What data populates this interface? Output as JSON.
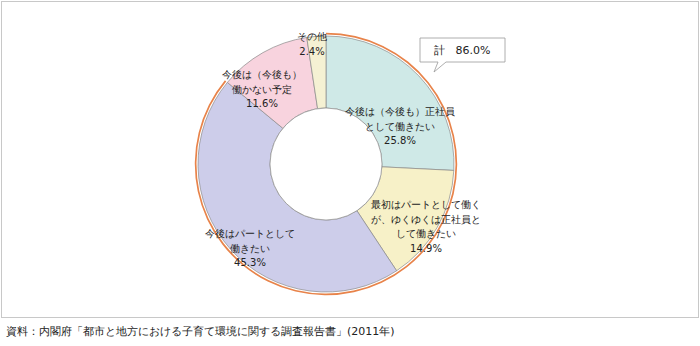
{
  "chart_data": {
    "type": "donut",
    "categories": [
      "今後は（今後も）正社員\nとして働きたい",
      "最初はパートとして働く\nが、ゆくゆくは正社員と\nして働きたい",
      "今後はパートとして\n働きたい",
      "今後は（今後も）\n働かない予定",
      "その他"
    ],
    "values": [
      25.8,
      14.9,
      45.3,
      11.6,
      2.4
    ],
    "value_labels": [
      "25.8%",
      "14.9%",
      "45.3%",
      "11.6%",
      "2.4%"
    ],
    "colors": [
      "#cfe9e7",
      "#f7f1c8",
      "#cdcdea",
      "#f8d3de",
      "#f5f1d3"
    ],
    "data_labels": true,
    "annotations": [
      {
        "text": "計　86.0%",
        "value": 86.0
      }
    ],
    "source": "資料：内閣府「都市と地方における子育て環境に関する調査報告書」(2011年)"
  }
}
